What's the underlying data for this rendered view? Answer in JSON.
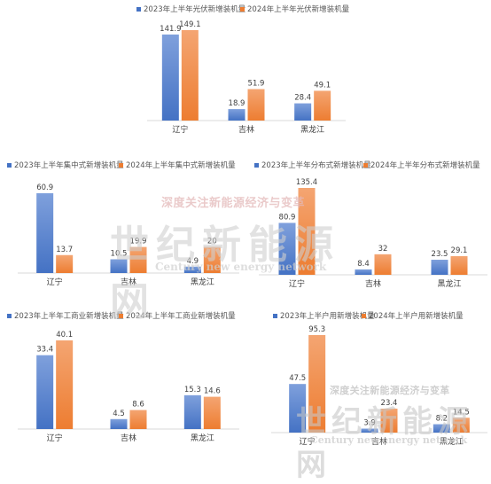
{
  "colors": {
    "series_2023": "#4472C4",
    "series_2024": "#ED7D31"
  },
  "watermarks": [
    {
      "tagline": "深度关注新能源经济与变革",
      "name_cn": "世纪新能源网",
      "name_en": "Century new energy network"
    },
    {
      "tagline": "深度关注新能源经济与变革",
      "name_cn": "世纪新能源网",
      "name_en": "Century new energy network"
    }
  ],
  "chart_data": [
    {
      "type": "bar",
      "categories": [
        "辽宁",
        "吉林",
        "黑龙江"
      ],
      "series": [
        {
          "name": "2023年上半年光伏新增装机量",
          "values": [
            141.9,
            18.9,
            28.4
          ]
        },
        {
          "name": "2024年上半年光伏新增装机量",
          "values": [
            149.1,
            51.9,
            49.1
          ]
        }
      ],
      "legend": "top",
      "grid": false
    },
    {
      "type": "bar",
      "categories": [
        "辽宁",
        "吉林",
        "黑龙江"
      ],
      "series": [
        {
          "name": "2023年上半年集中式新增装机量",
          "values": [
            60.9,
            10.5,
            4.9
          ]
        },
        {
          "name": "2024年上半年集中式新增装机量",
          "values": [
            13.7,
            19.9,
            20
          ]
        }
      ],
      "legend": "top",
      "grid": false
    },
    {
      "type": "bar",
      "categories": [
        "辽宁",
        "吉林",
        "黑龙江"
      ],
      "series": [
        {
          "name": "2023年上半年分布式新增装机量",
          "values": [
            80.9,
            8.4,
            23.5
          ]
        },
        {
          "name": "2024年上半年分布式新增装机量",
          "values": [
            135.4,
            32,
            29.1
          ]
        }
      ],
      "legend": "top",
      "grid": false
    },
    {
      "type": "bar",
      "categories": [
        "辽宁",
        "吉林",
        "黑龙江"
      ],
      "series": [
        {
          "name": "2023年上半年工商业新增装机量",
          "values": [
            33.4,
            4.5,
            15.3
          ]
        },
        {
          "name": "2024年上半年工商业新增装机量",
          "values": [
            40.1,
            8.6,
            14.6
          ]
        }
      ],
      "legend": "top",
      "grid": false
    },
    {
      "type": "bar",
      "categories": [
        "辽宁",
        "吉林",
        "黑龙江"
      ],
      "series": [
        {
          "name": "2023年上半户用新增装机量",
          "values": [
            47.5,
            3.9,
            8.2
          ]
        },
        {
          "name": "2024年上半户用新增装机量",
          "values": [
            95.3,
            23.4,
            14.5
          ]
        }
      ],
      "legend": "top",
      "grid": false
    }
  ]
}
